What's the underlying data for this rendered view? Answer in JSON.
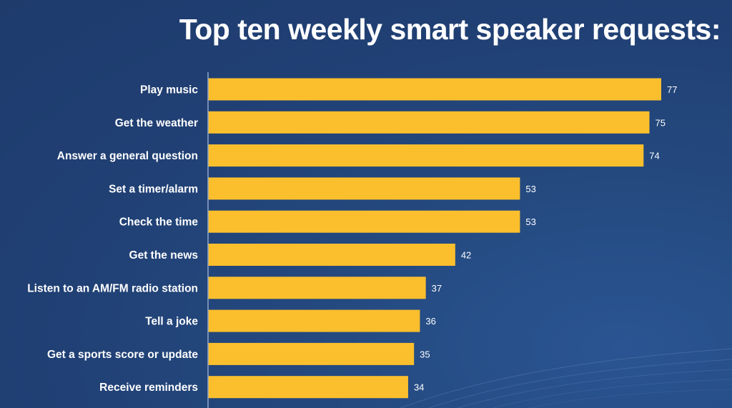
{
  "chart_data": {
    "type": "bar",
    "orientation": "horizontal",
    "title": "Top ten weekly smart speaker requests:",
    "xlabel": "",
    "ylabel": "",
    "xlim": [
      0,
      77
    ],
    "grid": false,
    "legend": "none",
    "categories": [
      "Play music",
      "Get the weather",
      "Answer a general question",
      "Set a timer/alarm",
      "Check the time",
      "Get the news",
      "Listen to an AM/FM radio station",
      "Tell a joke",
      "Get a sports score or update",
      "Receive reminders"
    ],
    "values": [
      77,
      75,
      74,
      53,
      53,
      42,
      37,
      36,
      35,
      34
    ],
    "colors": {
      "bar": "#fbbf2d",
      "background": "#203f73",
      "text": "#ffffff",
      "axis": "#8fa6c9"
    }
  }
}
